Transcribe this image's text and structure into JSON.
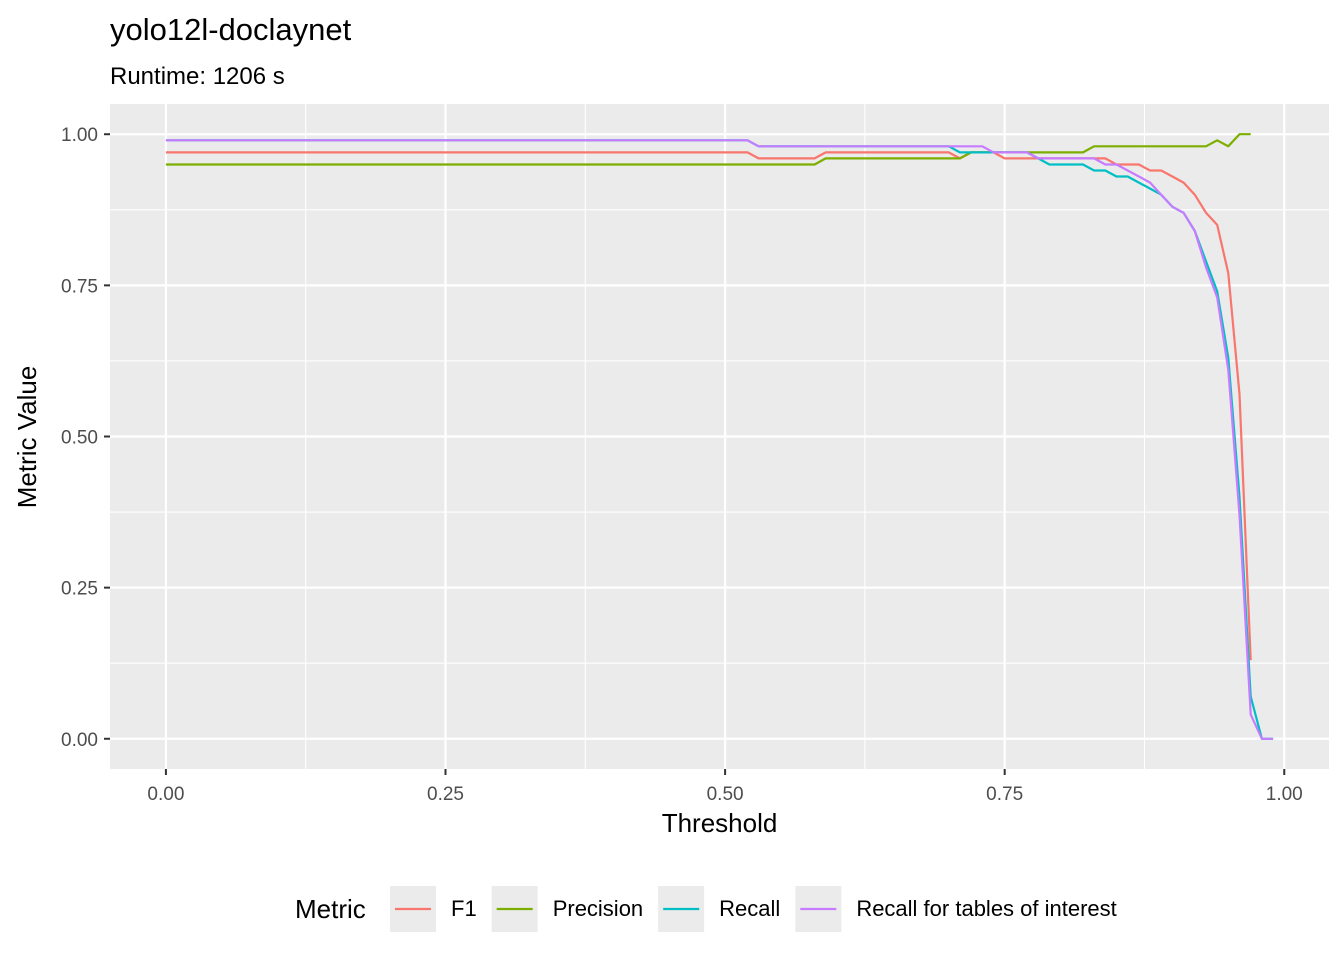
{
  "chart_data": {
    "type": "line",
    "title": "yolo12l-doclaynet",
    "subtitle": "Runtime: 1206 s",
    "xlabel": "Threshold",
    "ylabel": "Metric Value",
    "xlim": [
      -0.05,
      1.04
    ],
    "ylim": [
      -0.05,
      1.05
    ],
    "x_ticks": [
      "0.00",
      "0.25",
      "0.50",
      "0.75",
      "1.00"
    ],
    "y_ticks": [
      "0.00",
      "0.25",
      "0.50",
      "0.75",
      "1.00"
    ],
    "grid": true,
    "legend_position": "bottom",
    "legend_title": "Metric",
    "series": [
      {
        "name": "F1",
        "color": "#F8766D",
        "points": [
          [
            0.0,
            0.97
          ],
          [
            0.52,
            0.97
          ],
          [
            0.53,
            0.96
          ],
          [
            0.58,
            0.96
          ],
          [
            0.59,
            0.97
          ],
          [
            0.7,
            0.97
          ],
          [
            0.71,
            0.96
          ],
          [
            0.72,
            0.97
          ],
          [
            0.74,
            0.97
          ],
          [
            0.75,
            0.96
          ],
          [
            0.83,
            0.96
          ],
          [
            0.84,
            0.96
          ],
          [
            0.85,
            0.95
          ],
          [
            0.87,
            0.95
          ],
          [
            0.88,
            0.94
          ],
          [
            0.89,
            0.94
          ],
          [
            0.9,
            0.93
          ],
          [
            0.91,
            0.92
          ],
          [
            0.92,
            0.9
          ],
          [
            0.93,
            0.87
          ],
          [
            0.94,
            0.85
          ],
          [
            0.95,
            0.77
          ],
          [
            0.96,
            0.57
          ],
          [
            0.97,
            0.13
          ]
        ]
      },
      {
        "name": "Precision",
        "color": "#7CAE00",
        "points": [
          [
            0.0,
            0.95
          ],
          [
            0.58,
            0.95
          ],
          [
            0.59,
            0.96
          ],
          [
            0.71,
            0.96
          ],
          [
            0.72,
            0.97
          ],
          [
            0.82,
            0.97
          ],
          [
            0.83,
            0.98
          ],
          [
            0.93,
            0.98
          ],
          [
            0.94,
            0.99
          ],
          [
            0.95,
            0.98
          ],
          [
            0.96,
            1.0
          ],
          [
            0.97,
            1.0
          ]
        ]
      },
      {
        "name": "Recall",
        "color": "#00BFC4",
        "points": [
          [
            0.0,
            0.99
          ],
          [
            0.52,
            0.99
          ],
          [
            0.53,
            0.98
          ],
          [
            0.7,
            0.98
          ],
          [
            0.71,
            0.97
          ],
          [
            0.77,
            0.97
          ],
          [
            0.78,
            0.96
          ],
          [
            0.79,
            0.95
          ],
          [
            0.82,
            0.95
          ],
          [
            0.83,
            0.94
          ],
          [
            0.84,
            0.94
          ],
          [
            0.85,
            0.93
          ],
          [
            0.86,
            0.93
          ],
          [
            0.87,
            0.92
          ],
          [
            0.88,
            0.91
          ],
          [
            0.89,
            0.9
          ],
          [
            0.9,
            0.88
          ],
          [
            0.91,
            0.87
          ],
          [
            0.92,
            0.84
          ],
          [
            0.93,
            0.79
          ],
          [
            0.94,
            0.74
          ],
          [
            0.95,
            0.63
          ],
          [
            0.96,
            0.4
          ],
          [
            0.97,
            0.07
          ],
          [
            0.98,
            0.0
          ],
          [
            0.99,
            0.0
          ]
        ]
      },
      {
        "name": "Recall for tables of interest",
        "color": "#C77CFF",
        "points": [
          [
            0.0,
            0.99
          ],
          [
            0.52,
            0.99
          ],
          [
            0.53,
            0.98
          ],
          [
            0.73,
            0.98
          ],
          [
            0.74,
            0.97
          ],
          [
            0.77,
            0.97
          ],
          [
            0.78,
            0.96
          ],
          [
            0.83,
            0.96
          ],
          [
            0.84,
            0.95
          ],
          [
            0.85,
            0.95
          ],
          [
            0.86,
            0.94
          ],
          [
            0.87,
            0.93
          ],
          [
            0.88,
            0.92
          ],
          [
            0.89,
            0.9
          ],
          [
            0.9,
            0.88
          ],
          [
            0.91,
            0.87
          ],
          [
            0.92,
            0.84
          ],
          [
            0.93,
            0.78
          ],
          [
            0.94,
            0.73
          ],
          [
            0.95,
            0.61
          ],
          [
            0.96,
            0.37
          ],
          [
            0.97,
            0.04
          ],
          [
            0.98,
            0.0
          ],
          [
            0.99,
            0.0
          ]
        ]
      }
    ]
  }
}
